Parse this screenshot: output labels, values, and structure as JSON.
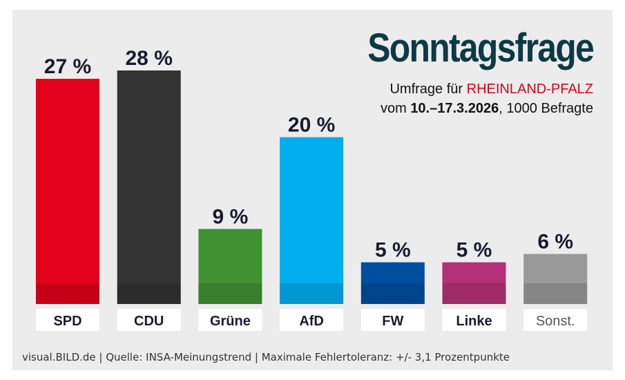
{
  "title": "Sonntagsfrage",
  "subtitle": {
    "line1_prefix": "Umfrage für ",
    "line1_region": "RHEINLAND-PFALZ",
    "line2_prefix": "vom ",
    "line2_date": "10.–17.3.2026",
    "line2_suffix": ", 1000 Befragte"
  },
  "footer": "visual.BILD.de | Quelle: INSA-Meinungstrend | Maximale Fehlertoleranz: +/- 3,1 Prozentpunkte",
  "chart_data": {
    "type": "bar",
    "categories": [
      "SPD",
      "CDU",
      "Grüne",
      "AfD",
      "FW",
      "Linke",
      "Sonst."
    ],
    "values": [
      27,
      28,
      9,
      20,
      5,
      5,
      6
    ],
    "value_labels": [
      "27 %",
      "28 %",
      "9 %",
      "20 %",
      "5 %",
      "5 %",
      "6 %"
    ],
    "colors": [
      "#e2001a",
      "#333333",
      "#3f9132",
      "#00aeef",
      "#004f9f",
      "#b43078",
      "#999999"
    ],
    "ylim": [
      0,
      28
    ]
  }
}
